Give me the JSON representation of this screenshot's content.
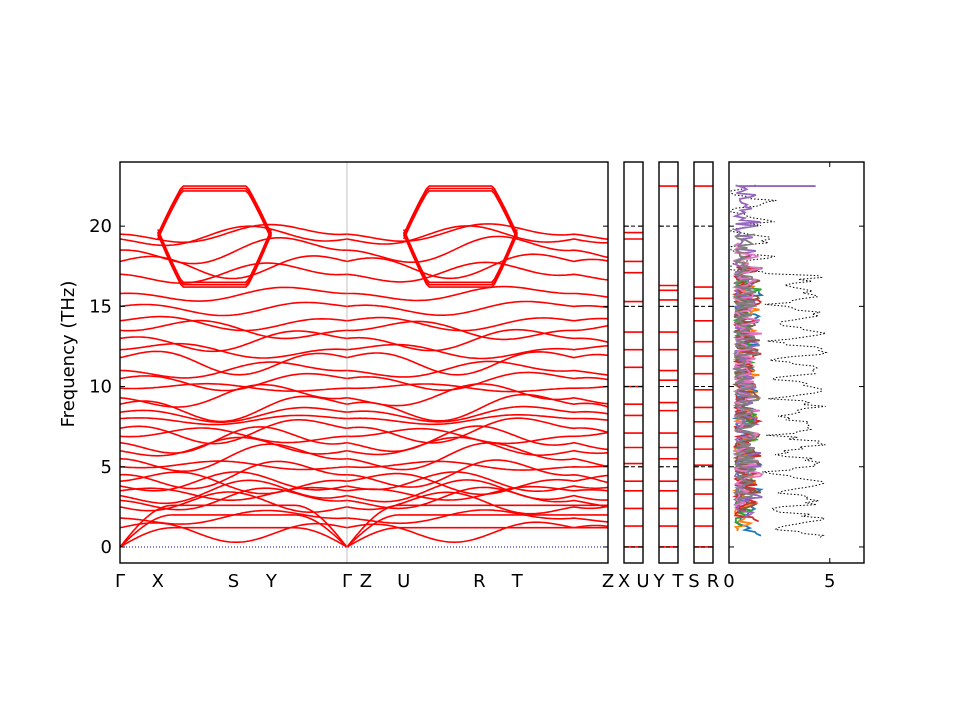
{
  "chart_data": {
    "type": "line",
    "ylabel": "Frequency (THz)",
    "ylim": [
      -1,
      24
    ],
    "yticks": [
      0,
      5,
      10,
      15,
      20
    ],
    "colors": {
      "bands": "#ff0000",
      "zero_line": "#0000cc",
      "dos_total": "#000000",
      "dos_partials": [
        "#1f77b4",
        "#ff7f0e",
        "#2ca02c",
        "#d62728",
        "#9467bd",
        "#8c564b",
        "#e377c2",
        "#7f7f7f"
      ]
    },
    "panels": [
      {
        "kind": "band",
        "xticks": [
          "Γ",
          "X",
          "S",
          "Y",
          "Γ",
          "Z",
          "U",
          "R",
          "T",
          "Z"
        ],
        "x": [
          0,
          1,
          3,
          4,
          6,
          6.5,
          7.5,
          9.5,
          10.5,
          12.9
        ],
        "segment_breaks": [
          6.0
        ],
        "modes_at_gamma": [
          0,
          0,
          0,
          1.2,
          1.8,
          2.5,
          2.9,
          3.2,
          3.5,
          3.8,
          4.1,
          4.5,
          5.0,
          5.5,
          6.0,
          6.5,
          6.9,
          7.4,
          8.0,
          8.4,
          8.9,
          9.3,
          9.9,
          10.5,
          11.0,
          11.8,
          12.3,
          13.0,
          13.5,
          14.1,
          15.0,
          15.8,
          17.0,
          17.8,
          18.5,
          19.2,
          19.5
        ],
        "flat_top_band_thz": 22.5,
        "lower_cusp_band_thz": 16.2
      },
      {
        "kind": "band",
        "xticks": [
          "X",
          "U"
        ],
        "levels": [
          0,
          1.3,
          2.4,
          3.5,
          4.1,
          5.2,
          6.2,
          7.1,
          8.2,
          8.9,
          10.0,
          11.2,
          12.3,
          13.4,
          15.3,
          17.1,
          17.8,
          19.2,
          19.6
        ]
      },
      {
        "kind": "band",
        "xticks": [
          "Y",
          "T"
        ],
        "levels": [
          0,
          1.3,
          2.4,
          3.5,
          4.1,
          5.5,
          6.2,
          7.1,
          8.5,
          9.0,
          10.4,
          11.0,
          12.3,
          13.4,
          15.4,
          16.0,
          16.3,
          22.5
        ]
      },
      {
        "kind": "band",
        "xticks": [
          "S",
          "R"
        ],
        "levels": [
          0,
          1.3,
          2.4,
          3.3,
          4.2,
          5.1,
          6.1,
          6.9,
          7.8,
          8.7,
          9.8,
          10.8,
          11.9,
          12.8,
          14.1,
          15.5,
          16.2,
          22.5
        ]
      },
      {
        "kind": "dos",
        "xticks": [
          "0",
          "5"
        ],
        "xlim": [
          0,
          6.7
        ]
      }
    ]
  }
}
